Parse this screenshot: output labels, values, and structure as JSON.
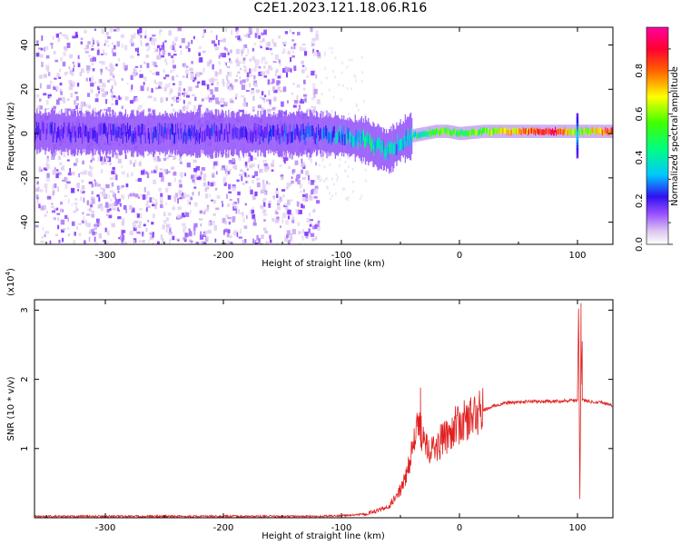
{
  "title": "C2E1.2023.121.18.06.R16",
  "colors": {
    "line": "#e02020",
    "spectrum_ramp": [
      "#ffffff",
      "#dcc8f0",
      "#7b2cff",
      "#3010f0",
      "#00c8ff",
      "#00ff80",
      "#40ff00",
      "#ffff00",
      "#ff6000",
      "#ff0030",
      "#ff00a0"
    ]
  },
  "chart_data": [
    {
      "type": "heatmap",
      "title": "C2E1.2023.121.18.06.R16",
      "xlabel": "Height of straight line (km)",
      "ylabel": "Frequency (Hz)",
      "xlim": [
        -360,
        130
      ],
      "ylim": [
        -50,
        48
      ],
      "xticks": [
        -300,
        -200,
        -100,
        0,
        100
      ],
      "yticks": [
        -40,
        -20,
        0,
        20,
        40
      ],
      "colorbar": {
        "label": "Normalized spectral amplitude",
        "range": [
          0,
          1
        ],
        "ticks": [
          "0.0",
          "0.2",
          "0.4",
          "0.6",
          "0.8"
        ]
      },
      "ridge": {
        "x": [
          -360,
          -300,
          -200,
          -120,
          -100,
          -80,
          -70,
          -60,
          -50,
          -40,
          -30,
          -20,
          -10,
          0,
          20,
          50,
          80,
          100,
          130
        ],
        "frequency_hz": [
          1,
          0,
          0,
          0,
          -1,
          -3,
          -6,
          -8,
          -3,
          -1,
          0,
          1,
          1,
          0,
          1,
          1,
          1,
          1,
          1
        ],
        "amplitude": [
          0.25,
          0.25,
          0.25,
          0.3,
          0.4,
          0.45,
          0.45,
          0.45,
          0.4,
          0.45,
          0.5,
          0.6,
          0.6,
          0.55,
          0.6,
          0.75,
          0.9,
          0.6,
          0.85
        ]
      },
      "scatter_region": {
        "x_range": [
          -360,
          -120
        ],
        "frequency_range": [
          -50,
          48
        ]
      }
    },
    {
      "type": "line",
      "xlabel": "Height of straight line (km)",
      "ylabel": "SNR (10 * v/v)",
      "ylabel_multiplier": "(x10",
      "ylabel_multiplier_exp": "4",
      "ylabel_multiplier_close": ")",
      "xlim": [
        -360,
        130
      ],
      "ylim": [
        0,
        3.15
      ],
      "xticks": [
        -300,
        -200,
        -100,
        0,
        100
      ],
      "yticks": [
        1,
        2,
        3
      ],
      "series": [
        {
          "x": [
            -360,
            -300,
            -200,
            -120,
            -100,
            -80,
            -60,
            -50,
            -45,
            -40,
            -35,
            -30,
            -25,
            -20,
            -15,
            -10,
            -5,
            0,
            5,
            10,
            20,
            30,
            40,
            60,
            80,
            95,
            100,
            101,
            102,
            103,
            104,
            105,
            110,
            120,
            130
          ],
          "y": [
            0.02,
            0.02,
            0.02,
            0.02,
            0.03,
            0.05,
            0.15,
            0.4,
            0.6,
            1.0,
            1.3,
            1.2,
            1.0,
            1.0,
            1.1,
            1.2,
            1.3,
            1.35,
            1.4,
            1.45,
            1.55,
            1.62,
            1.66,
            1.68,
            1.68,
            1.7,
            1.7,
            3.1,
            0.3,
            2.55,
            1.7,
            1.7,
            1.68,
            1.67,
            1.62
          ],
          "spikes": [
            [
              -33,
              1.88
            ],
            [
              -28,
              1.15
            ],
            [
              -16,
              1.35
            ],
            [
              -5,
              1.4
            ],
            [
              12,
              1.5
            ],
            [
              103,
              3.1
            ],
            [
              102,
              0.27
            ],
            [
              104,
              2.55
            ]
          ]
        }
      ]
    }
  ]
}
